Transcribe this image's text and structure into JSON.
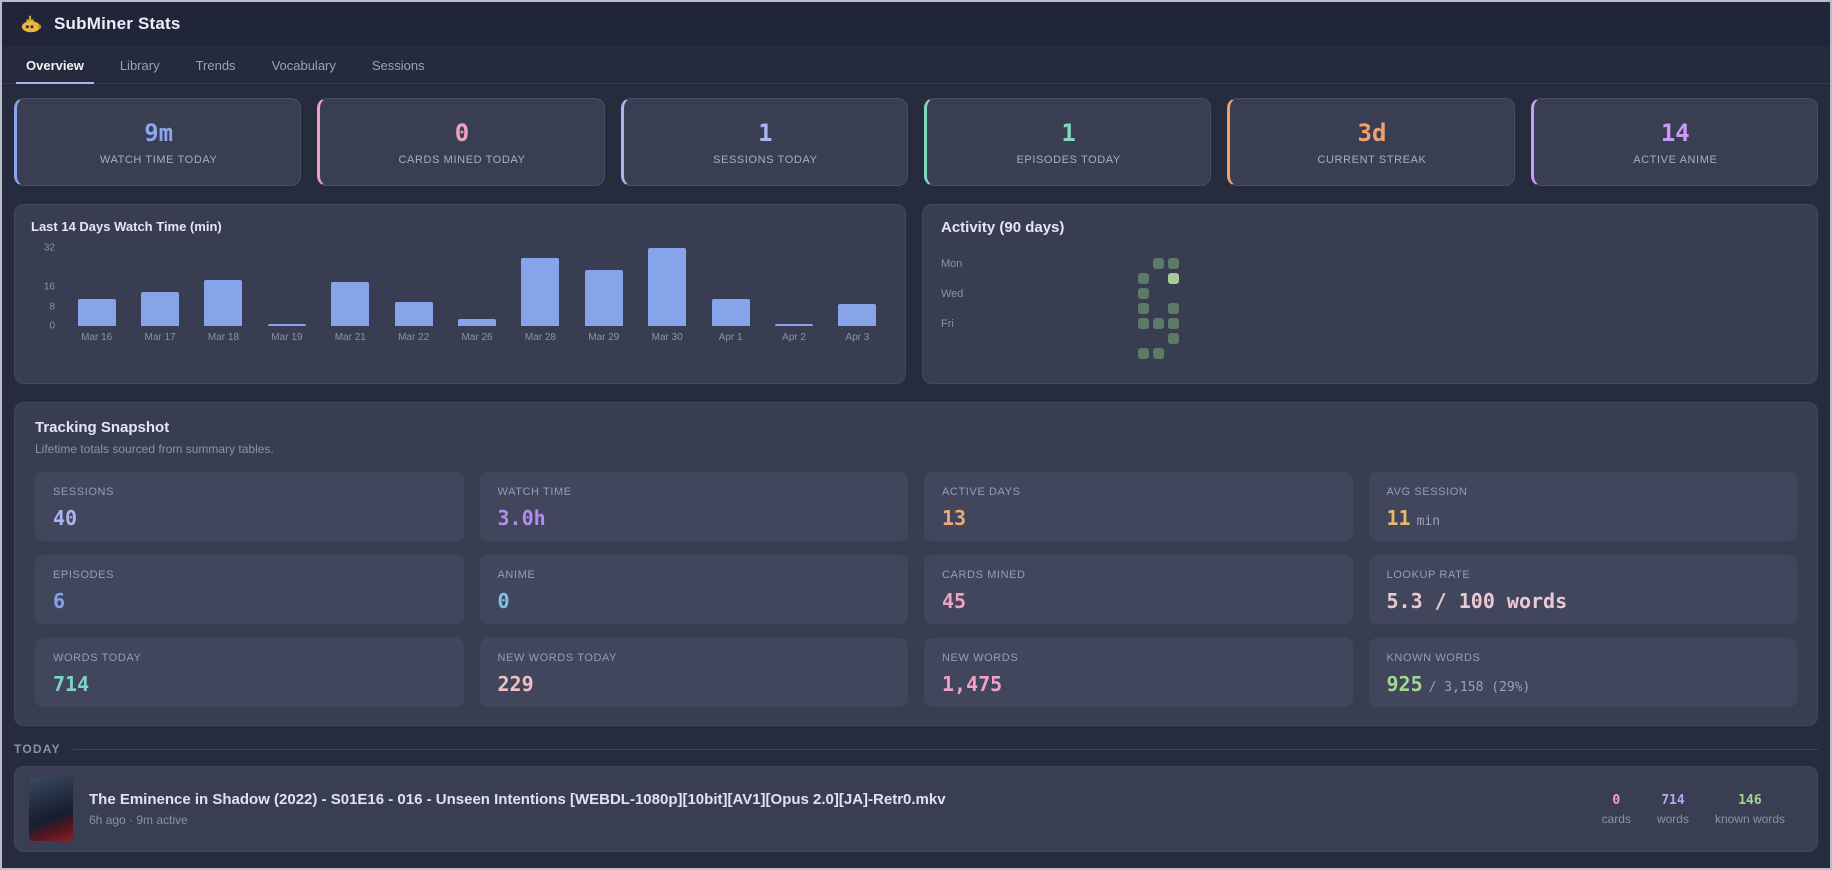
{
  "app": {
    "title": "SubMiner Stats",
    "logo": "submarine-icon"
  },
  "tabs": [
    {
      "label": "Overview",
      "active": true
    },
    {
      "label": "Library",
      "active": false
    },
    {
      "label": "Trends",
      "active": false
    },
    {
      "label": "Vocabulary",
      "active": false
    },
    {
      "label": "Sessions",
      "active": false
    }
  ],
  "stat_cards": [
    {
      "value": "9m",
      "label": "WATCH TIME TODAY",
      "color": "#8aa6ec"
    },
    {
      "value": "0",
      "label": "CARDS MINED TODAY",
      "color": "#f0a0c0"
    },
    {
      "value": "1",
      "label": "SESSIONS TODAY",
      "color": "#aab6f4"
    },
    {
      "value": "1",
      "label": "EPISODES TODAY",
      "color": "#7fd9bb"
    },
    {
      "value": "3d",
      "label": "CURRENT STREAK",
      "color": "#f0a06a"
    },
    {
      "value": "14",
      "label": "ACTIVE ANIME",
      "color": "#c89cf4"
    }
  ],
  "chart_data": {
    "type": "bar",
    "title": "Last 14 Days Watch Time (min)",
    "categories": [
      "Mar 16",
      "Mar 17",
      "Mar 18",
      "Mar 19",
      "Mar 21",
      "Mar 22",
      "Mar 26",
      "Mar 28",
      "Mar 29",
      "Mar 30",
      "Apr 1",
      "Apr 2",
      "Apr 3"
    ],
    "values": [
      11,
      14,
      19,
      1,
      18,
      10,
      3,
      28,
      23,
      32,
      11,
      1,
      9
    ],
    "xlabel": "",
    "ylabel": "",
    "yticks": [
      0,
      8,
      16,
      32
    ],
    "ylim": [
      0,
      32
    ],
    "grid": false,
    "bar_color": "#87a4eb"
  },
  "activity": {
    "title": "Activity (90 days)",
    "day_labels": [
      {
        "label": "Mon",
        "row": 0
      },
      {
        "label": "Wed",
        "row": 2
      },
      {
        "label": "Fri",
        "row": 4
      }
    ],
    "weeks": 12,
    "colors": {
      "normal": "#5d7a68",
      "bright": "#a6cc92"
    },
    "cells": [
      {
        "col": 9,
        "row": 1,
        "level": "normal"
      },
      {
        "col": 9,
        "row": 2,
        "level": "normal"
      },
      {
        "col": 9,
        "row": 3,
        "level": "normal"
      },
      {
        "col": 9,
        "row": 4,
        "level": "normal"
      },
      {
        "col": 9,
        "row": 6,
        "level": "normal"
      },
      {
        "col": 10,
        "row": 0,
        "level": "normal"
      },
      {
        "col": 10,
        "row": 4,
        "level": "normal"
      },
      {
        "col": 10,
        "row": 6,
        "level": "normal"
      },
      {
        "col": 11,
        "row": 0,
        "level": "normal"
      },
      {
        "col": 11,
        "row": 1,
        "level": "bright"
      },
      {
        "col": 11,
        "row": 3,
        "level": "normal"
      },
      {
        "col": 11,
        "row": 4,
        "level": "normal"
      },
      {
        "col": 11,
        "row": 5,
        "level": "normal"
      }
    ]
  },
  "snapshot": {
    "title": "Tracking Snapshot",
    "subtitle": "Lifetime totals sourced from summary tables.",
    "tiles": [
      {
        "label": "SESSIONS",
        "value": "40",
        "suffix": "",
        "color": "#a9b4f2"
      },
      {
        "label": "WATCH TIME",
        "value": "3.0h",
        "suffix": "",
        "color": "#b48cf0"
      },
      {
        "label": "ACTIVE DAYS",
        "value": "13",
        "suffix": "",
        "color": "#f0a878"
      },
      {
        "label": "AVG SESSION",
        "value": "11",
        "suffix": "min",
        "color": "#e9b86e"
      },
      {
        "label": "EPISODES",
        "value": "6",
        "suffix": "",
        "color": "#85a2ea"
      },
      {
        "label": "ANIME",
        "value": "0",
        "suffix": "",
        "color": "#7cc4e8"
      },
      {
        "label": "CARDS MINED",
        "value": "45",
        "suffix": "",
        "color": "#f2a3c4"
      },
      {
        "label": "LOOKUP RATE",
        "value": "5.3 / 100 words",
        "suffix": "",
        "color": "#ecc8d2"
      },
      {
        "label": "WORDS TODAY",
        "value": "714",
        "suffix": "",
        "color": "#7cd4c8"
      },
      {
        "label": "NEW WORDS TODAY",
        "value": "229",
        "suffix": "",
        "color": "#eec0c0"
      },
      {
        "label": "NEW WORDS",
        "value": "1,475",
        "suffix": "",
        "color": "#f2a0c8"
      },
      {
        "label": "KNOWN WORDS",
        "value": "925",
        "suffix": "/ 3,158 (29%)",
        "color": "#a0d890"
      }
    ]
  },
  "today": {
    "heading": "TODAY",
    "episode": {
      "title": "The Eminence in Shadow (2022) - S01E16 - 016 - Unseen Intentions [WEBDL-1080p][10bit][AV1][Opus 2.0][JA]-Retr0.mkv",
      "meta": "6h ago · 9m active",
      "stats": [
        {
          "value": "0",
          "label": "cards",
          "color": "#f2a3c4"
        },
        {
          "value": "714",
          "label": "words",
          "color": "#b4a6f2"
        },
        {
          "value": "146",
          "label": "known words",
          "color": "#a0d890"
        }
      ]
    }
  }
}
